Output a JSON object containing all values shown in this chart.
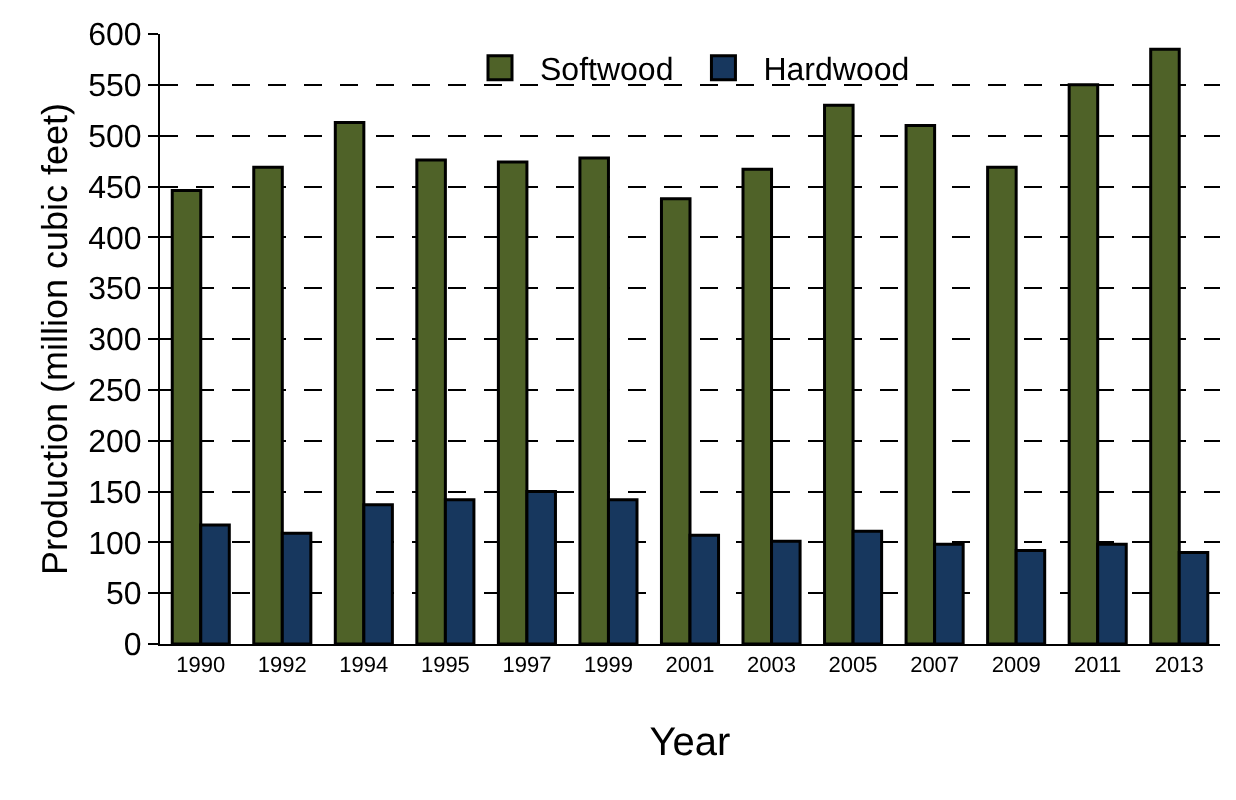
{
  "chart_data": {
    "type": "bar",
    "xlabel": "Year",
    "ylabel": "Production (million cubic feet)",
    "categories": [
      "1990",
      "1992",
      "1994",
      "1995",
      "1997",
      "1999",
      "2001",
      "2003",
      "2005",
      "2007",
      "2009",
      "2011",
      "2013"
    ],
    "series": [
      {
        "name": "Softwood",
        "color": "#4f6228",
        "values": [
          446,
          469,
          513,
          476,
          474,
          478,
          438,
          467,
          530,
          510,
          469,
          550,
          585
        ]
      },
      {
        "name": "Hardwood",
        "color": "#17375e",
        "values": [
          117,
          109,
          137,
          142,
          150,
          142,
          107,
          101,
          111,
          98,
          92,
          98,
          90
        ]
      }
    ],
    "ylim": [
      0,
      600
    ],
    "yticks": [
      0,
      50,
      100,
      150,
      200,
      250,
      300,
      350,
      400,
      450,
      500,
      550,
      600
    ],
    "grid": "y",
    "legend": "top"
  }
}
